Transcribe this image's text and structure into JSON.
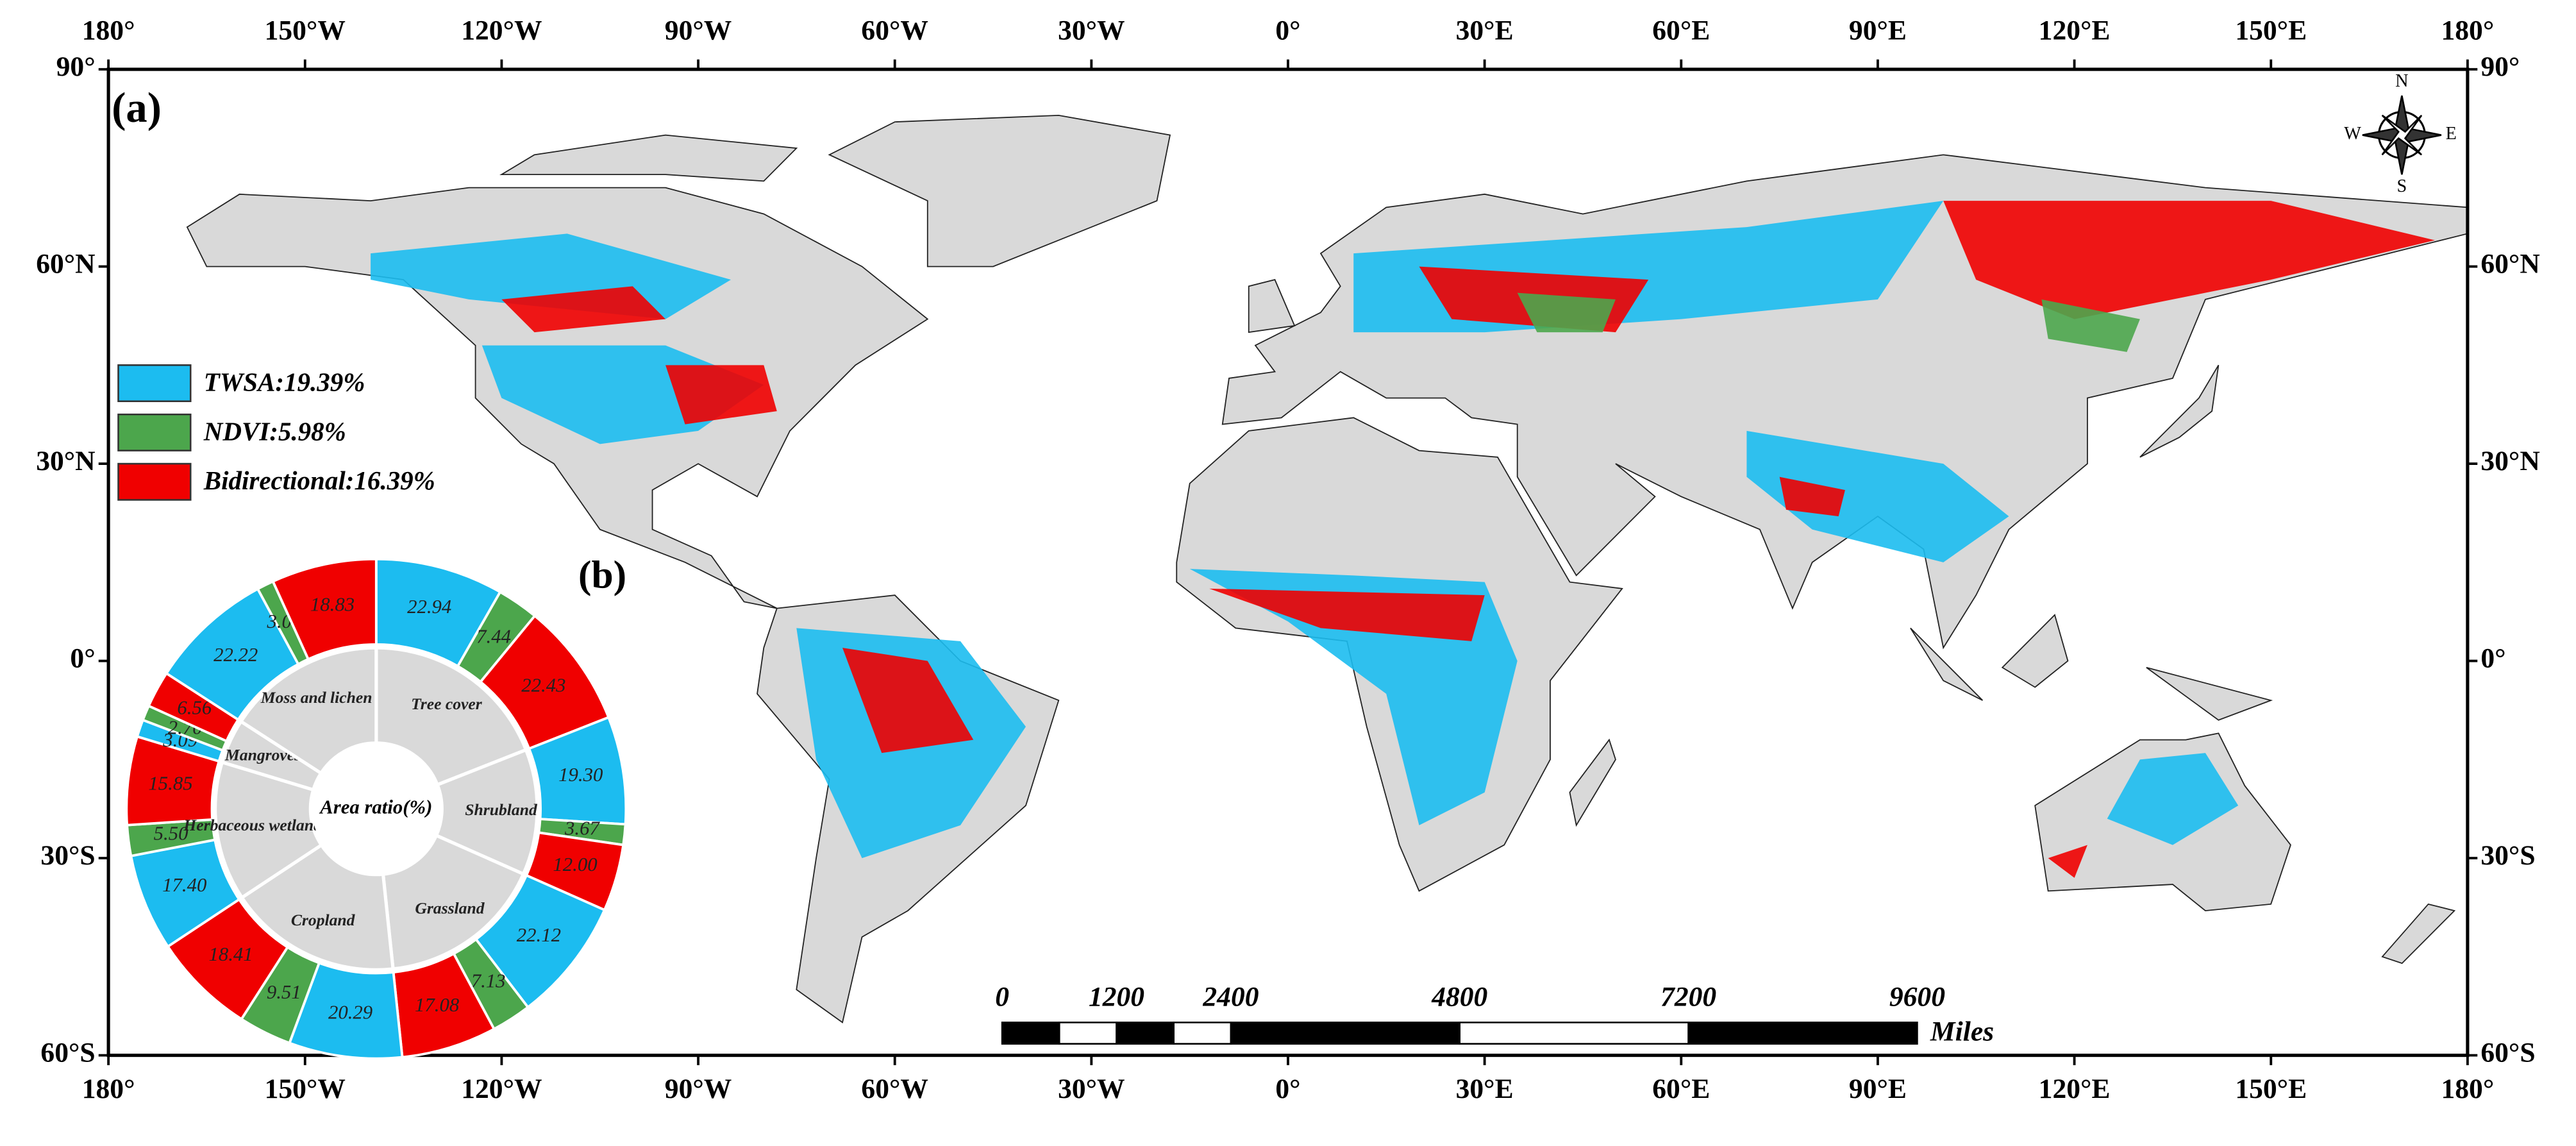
{
  "chart_data": [
    {
      "type": "map",
      "panel_label": "(a)",
      "xlim": [
        -180,
        180
      ],
      "ylim": [
        -60,
        90
      ],
      "xticks": [
        {
          "value": -180,
          "label": "180°"
        },
        {
          "value": -150,
          "label": "150°W"
        },
        {
          "value": -120,
          "label": "120°W"
        },
        {
          "value": -90,
          "label": "90°W"
        },
        {
          "value": -60,
          "label": "60°W"
        },
        {
          "value": -30,
          "label": "30°W"
        },
        {
          "value": 0,
          "label": "0°"
        },
        {
          "value": 30,
          "label": "30°E"
        },
        {
          "value": 60,
          "label": "60°E"
        },
        {
          "value": 90,
          "label": "90°E"
        },
        {
          "value": 120,
          "label": "120°E"
        },
        {
          "value": 150,
          "label": "150°E"
        },
        {
          "value": 180,
          "label": "180°"
        }
      ],
      "yticks": [
        {
          "value": -60,
          "label": "60°S"
        },
        {
          "value": -30,
          "label": "30°S"
        },
        {
          "value": 0,
          "label": "0°"
        },
        {
          "value": 30,
          "label": "30°N"
        },
        {
          "value": 60,
          "label": "60°N"
        },
        {
          "value": 90,
          "label": "90°"
        }
      ],
      "legend": [
        {
          "label": "TWSA:19.39%",
          "color": "#1cbcf0"
        },
        {
          "label": "NDVI:5.98%",
          "color": "#4ca64c"
        },
        {
          "label": "Bidirectional:16.39%",
          "color": "#f00000"
        }
      ],
      "compass": [
        "N",
        "E",
        "S",
        "W"
      ],
      "scale_bar": {
        "ticks": [
          0,
          1200,
          2400,
          4800,
          7200,
          9600
        ],
        "unit": "Miles"
      }
    },
    {
      "type": "donut",
      "panel_label": "(b)",
      "center_label": "Area ratio(%)",
      "categories": [
        "Tree cover",
        "Shrubland",
        "Grassland",
        "Cropland",
        "Herbaceous wetland",
        "Mangroves",
        "Moss and lichen"
      ],
      "series": [
        {
          "name": "TWSA",
          "color": "#1cbcf0",
          "values": [
            22.94,
            19.3,
            22.12,
            20.29,
            17.4,
            3.09,
            22.22
          ],
          "value_labels": [
            "22.94",
            "19.30",
            "22.12",
            "20.29",
            "17.40",
            "3.09",
            "22.22"
          ]
        },
        {
          "name": "NDVI",
          "color": "#4ca64c",
          "values": [
            7.44,
            3.67,
            7.13,
            9.51,
            5.5,
            2.7,
            3.0
          ],
          "value_labels": [
            "7.44",
            "3.67",
            "7.13",
            "9.51",
            "5.50",
            "2.70",
            "3.00"
          ]
        },
        {
          "name": "Bidirectional",
          "color": "#f00000",
          "values": [
            22.43,
            12.0,
            17.08,
            18.41,
            15.85,
            6.56,
            18.83
          ],
          "value_labels": [
            "22.43",
            "12.00",
            "17.08",
            "18.41",
            "15.85",
            "6.56",
            "18.83"
          ]
        }
      ]
    }
  ]
}
